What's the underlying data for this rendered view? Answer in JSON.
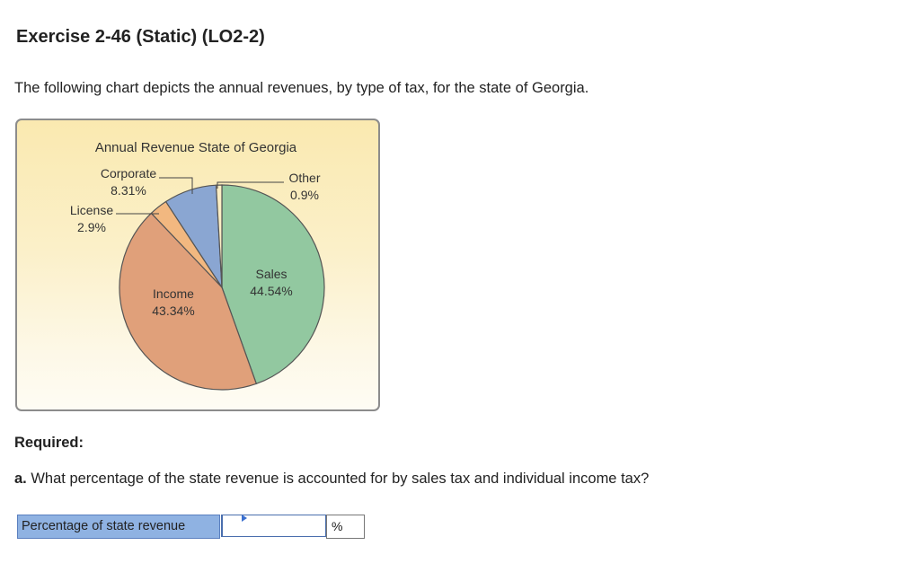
{
  "exercise": {
    "title": "Exercise 2-46 (Static) (LO2-2)",
    "intro": "The following chart depicts the annual revenues, by type of tax, for the state of Georgia.",
    "required_label": "Required:",
    "question_letter": "a.",
    "question_text": " What percentage of the state revenue is accounted for by sales tax and individual income tax?",
    "answer_label": "Percentage of state revenue",
    "answer_value": "",
    "answer_unit": "%"
  },
  "chart_data": {
    "type": "pie",
    "title": "Annual Revenue State of Georgia",
    "slices": [
      {
        "name": "Sales",
        "label": "44.54%",
        "value": 44.54,
        "color": "#92c8a0"
      },
      {
        "name": "Income",
        "label": "43.34%",
        "value": 43.34,
        "color": "#e0a07a"
      },
      {
        "name": "License",
        "label": "2.9%",
        "value": 2.9,
        "color": "#f2b880"
      },
      {
        "name": "Corporate",
        "label": "8.31%",
        "value": 8.31,
        "color": "#8aa6d2"
      },
      {
        "name": "Other",
        "label": "0.9%",
        "value": 0.9,
        "color": "#fbeec4"
      }
    ],
    "background_colors": [
      "#fae9b0",
      "#fefcf4"
    ],
    "slice_border_color": "#555555"
  }
}
